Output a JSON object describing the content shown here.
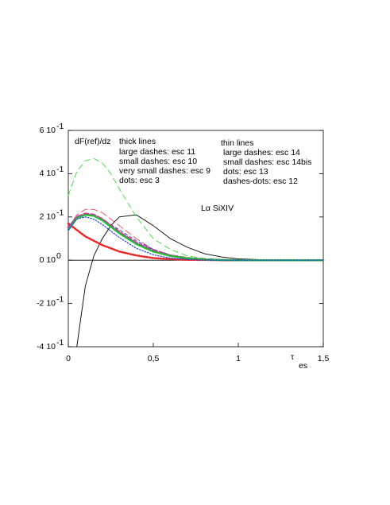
{
  "chart_data": {
    "type": "line",
    "x_label": "τ",
    "x_label_subscript": "es",
    "annotations": [
      "dF(ref)/dz",
      "thick lines",
      "large dashes: esc 11",
      "small dashes: esc 10",
      "very small dashes: esc 9",
      "dots: esc 3",
      "thin lines",
      "large dashes: esc 14",
      "small dashes: esc 14bis",
      "dots: esc 13",
      "dashes-dots: esc 12",
      "Lα  SiXIV"
    ],
    "xlim": [
      0,
      1.5
    ],
    "ylim": [
      -0.4,
      0.6
    ],
    "xticks": [
      0,
      {
        "value": 0.5,
        "label": "0,5"
      },
      1,
      {
        "value": 1.5,
        "label": "1,5"
      }
    ],
    "yticks": [
      {
        "value": 0.6,
        "label": "6 10",
        "exponent": "-1"
      },
      {
        "value": 0.4,
        "label": "4 10",
        "exponent": "-1"
      },
      {
        "value": 0.2,
        "label": "2 10",
        "exponent": "-1"
      },
      {
        "value": 0,
        "label": "0 10",
        "exponent": "0"
      },
      {
        "value": -0.2,
        "label": "-2 10",
        "exponent": "-1"
      },
      {
        "value": -0.4,
        "label": "-4 10",
        "exponent": "-1"
      }
    ],
    "x": [
      0,
      0.05,
      0.1,
      0.15,
      0.2,
      0.25,
      0.3,
      0.4,
      0.5,
      0.6,
      0.7,
      0.8,
      0.9,
      1.0,
      1.2,
      1.5
    ],
    "series": [
      {
        "color": "#000000",
        "dash": "",
        "width": 0.9,
        "values": [
          null,
          -0.4,
          -0.12,
          0.02,
          0.1,
          0.16,
          0.2,
          0.21,
          0.16,
          0.1,
          0.06,
          0.03,
          0.015,
          0.006,
          0.001,
          0
        ]
      },
      {
        "color": "#33dd33",
        "dash": "7 5",
        "width": 0.9,
        "values": [
          0.3,
          0.41,
          0.46,
          0.47,
          0.45,
          0.4,
          0.33,
          0.2,
          0.1,
          0.05,
          0.02,
          0.008,
          0.003,
          0.001,
          0,
          0
        ]
      },
      {
        "color": "#ee2222",
        "dash": "1.5 2",
        "width": 2.5,
        "values": [
          0.17,
          0.14,
          0.11,
          0.09,
          0.07,
          0.055,
          0.04,
          0.022,
          0.01,
          0.005,
          0.002,
          0.001,
          0,
          0,
          0,
          0
        ]
      },
      {
        "color": "#ee4466",
        "dash": "9 4",
        "width": 0.9,
        "values": [
          0.15,
          0.21,
          0.235,
          0.235,
          0.22,
          0.19,
          0.16,
          0.1,
          0.05,
          0.025,
          0.01,
          0.004,
          0.001,
          0,
          0,
          0
        ]
      },
      {
        "color": "#2233cc",
        "dash": "4 3",
        "width": 0.9,
        "values": [
          0.15,
          0.2,
          0.21,
          0.205,
          0.19,
          0.165,
          0.14,
          0.09,
          0.05,
          0.024,
          0.01,
          0.004,
          0.001,
          0,
          0,
          0
        ]
      },
      {
        "color": "#dd22aa",
        "dash": "6 3",
        "width": 2.5,
        "values": [
          0.15,
          0.2,
          0.215,
          0.21,
          0.19,
          0.16,
          0.13,
          0.08,
          0.045,
          0.022,
          0.01,
          0.004,
          0.001,
          0,
          0,
          0
        ]
      },
      {
        "color": "#22bb33",
        "dash": "6 2 1.5 2",
        "width": 2.5,
        "values": [
          0.14,
          0.195,
          0.21,
          0.205,
          0.185,
          0.155,
          0.125,
          0.075,
          0.04,
          0.02,
          0.009,
          0.003,
          0.001,
          0,
          0,
          0
        ]
      },
      {
        "color": "#2244ee",
        "dash": "1.5 2",
        "width": 1.2,
        "values": [
          0.14,
          0.19,
          0.2,
          0.19,
          0.165,
          0.135,
          0.105,
          0.055,
          0.025,
          0.01,
          0.004,
          0.001,
          0,
          0,
          0,
          0
        ]
      }
    ]
  }
}
